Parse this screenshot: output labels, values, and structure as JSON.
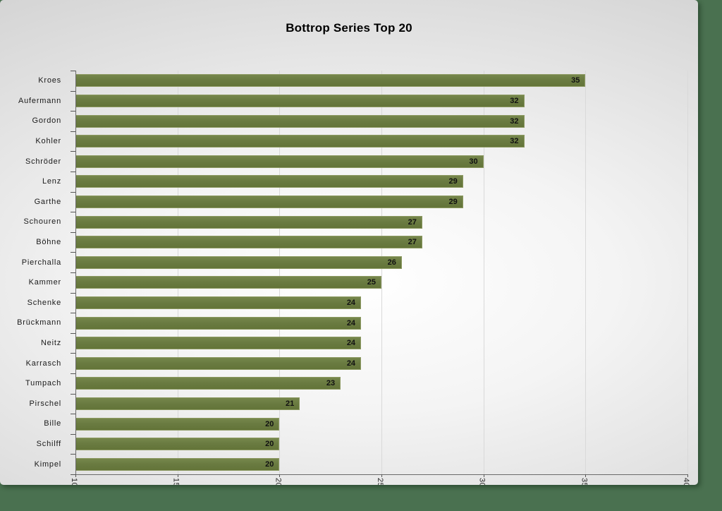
{
  "chart_data": {
    "type": "bar",
    "orientation": "horizontal",
    "title": "Bottrop Series Top 20",
    "xlabel": "",
    "ylabel": "",
    "categories": [
      "Kroes",
      "Aufermann",
      "Gordon",
      "Kohler",
      "Schröder",
      "Lenz",
      "Garthe",
      "Schouren",
      "Böhne",
      "Pierchalla",
      "Kammer",
      "Schenke",
      "Brückmann",
      "Neitz",
      "Karrasch",
      "Tumpach",
      "Pirschel",
      "Bille",
      "Schilff",
      "Kimpel"
    ],
    "values": [
      35,
      32,
      32,
      32,
      30,
      29,
      29,
      27,
      27,
      26,
      25,
      24,
      24,
      24,
      24,
      23,
      21,
      20,
      20,
      20
    ],
    "xlim": [
      10,
      40
    ],
    "x_ticks": [
      10,
      15,
      20,
      25,
      30,
      35,
      40
    ],
    "grid": true,
    "legend": false,
    "data_labels": true
  },
  "colors": {
    "bar_fill": "#6a7b41",
    "bar_border": "#8d9a63",
    "background_green": "#4a7150",
    "panel_gray_edge": "#c6c6c6",
    "gridline": "#d9d9d9",
    "axis": "#6a6a6a",
    "text": "#1a1a1a"
  }
}
